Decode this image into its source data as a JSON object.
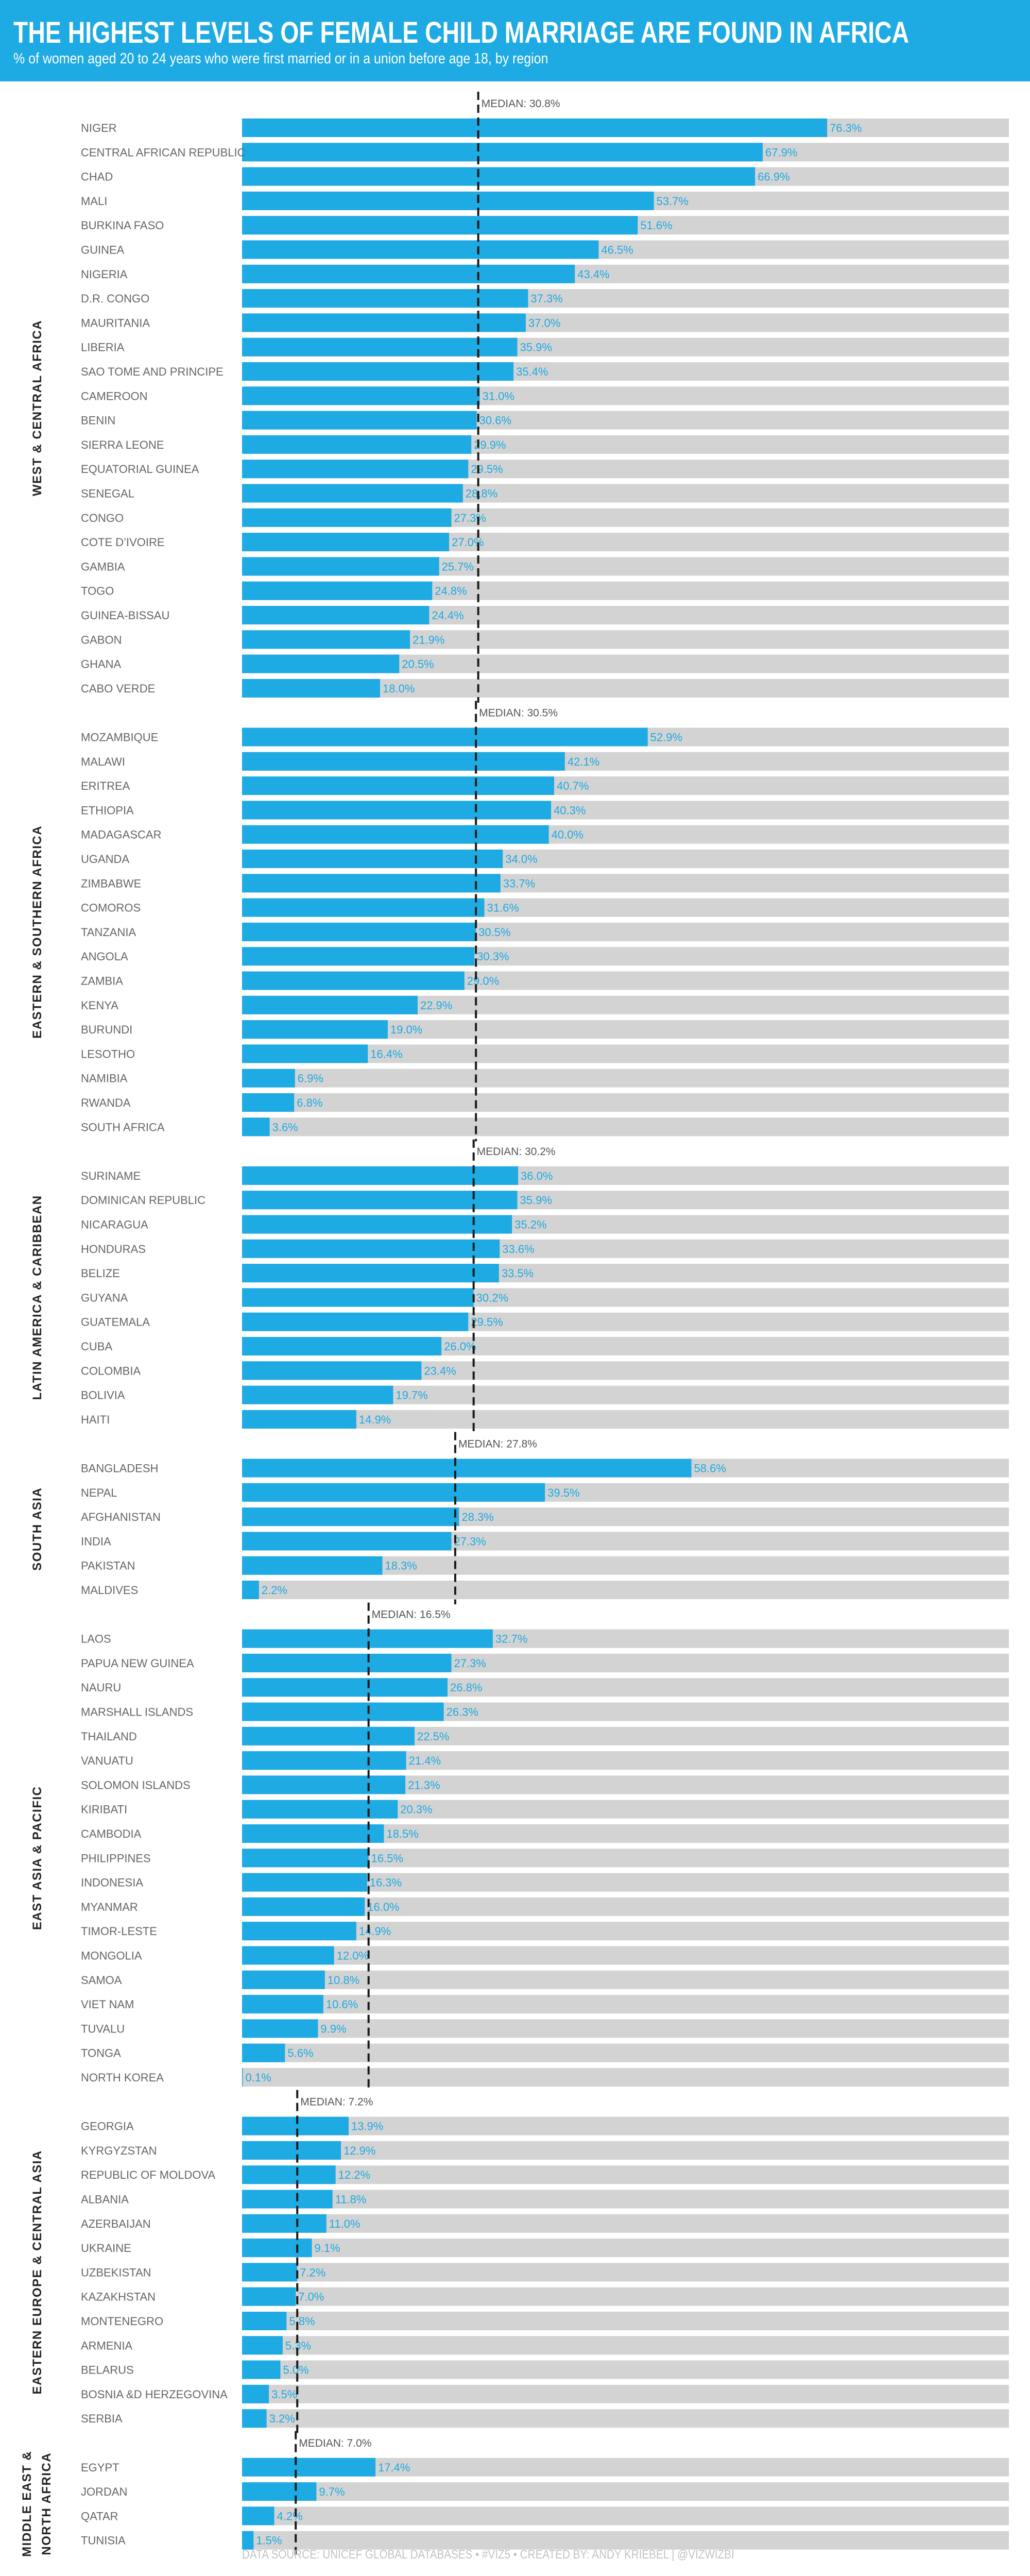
{
  "header": {
    "title": "THE HIGHEST LEVELS OF FEMALE CHILD MARRIAGE ARE FOUND IN AFRICA",
    "subtitle": "% of women aged 20 to 24 years who were first married or in a union before age 18, by region"
  },
  "footer": {
    "text": "DATA SOURCE: UNICEF GLOBAL DATABASES  •  #VIZ5  •  CREATED BY: ANDY KRIEBEL | @VIZWIZBI"
  },
  "colors": {
    "header_bg": "#1eaae2",
    "bar": "#1eaae2",
    "track": "#d3d3d3",
    "value_label": "#1eaae2",
    "country_label": "#666666",
    "region_label": "#222222",
    "median_line": "#1a1a1a",
    "median_label": "#555555"
  },
  "chart_data": {
    "type": "bar",
    "orientation": "horizontal",
    "title": "THE HIGHEST LEVELS OF FEMALE CHILD MARRIAGE ARE FOUND IN AFRICA",
    "subtitle": "% of women aged 20 to 24 years who were first married or in a union before age 18, by region",
    "xlim": [
      0,
      100
    ],
    "unit": "%",
    "median_label_prefix": "MEDIAN: ",
    "groups": [
      {
        "region": "WEST & CENTRAL AFRICA",
        "median": 30.8,
        "categories": [
          "NIGER",
          "CENTRAL AFRICAN REPUBLIC",
          "CHAD",
          "MALI",
          "BURKINA FASO",
          "GUINEA",
          "NIGERIA",
          "D.R. CONGO",
          "MAURITANIA",
          "LIBERIA",
          "SAO TOME AND PRINCIPE",
          "CAMEROON",
          "BENIN",
          "SIERRA LEONE",
          "EQUATORIAL GUINEA",
          "SENEGAL",
          "CONGO",
          "COTE D’IVOIRE",
          "GAMBIA",
          "TOGO",
          "GUINEA-BISSAU",
          "GABON",
          "GHANA",
          "CABO VERDE"
        ],
        "values": [
          76.3,
          67.9,
          66.9,
          53.7,
          51.6,
          46.5,
          43.4,
          37.3,
          37.0,
          35.9,
          35.4,
          31.0,
          30.6,
          29.9,
          29.5,
          28.8,
          27.3,
          27.0,
          25.7,
          24.8,
          24.4,
          21.9,
          20.5,
          18.0
        ]
      },
      {
        "region": "EASTERN & SOUTHERN AFRICA",
        "median": 30.5,
        "categories": [
          "MOZAMBIQUE",
          "MALAWI",
          "ERITREA",
          "ETHIOPIA",
          "MADAGASCAR",
          "UGANDA",
          "ZIMBABWE",
          "COMOROS",
          "TANZANIA",
          "ANGOLA",
          "ZAMBIA",
          "KENYA",
          "BURUNDI",
          "LESOTHO",
          "NAMIBIA",
          "RWANDA",
          "SOUTH AFRICA"
        ],
        "values": [
          52.9,
          42.1,
          40.7,
          40.3,
          40.0,
          34.0,
          33.7,
          31.6,
          30.5,
          30.3,
          29.0,
          22.9,
          19.0,
          16.4,
          6.9,
          6.8,
          3.6
        ]
      },
      {
        "region": "LATIN AMERICA & CARIBBEAN",
        "median": 30.2,
        "categories": [
          "SURINAME",
          "DOMINICAN REPUBLIC",
          "NICARAGUA",
          "HONDURAS",
          "BELIZE",
          "GUYANA",
          "GUATEMALA",
          "CUBA",
          "COLOMBIA",
          "BOLIVIA",
          "HAITI"
        ],
        "values": [
          36.0,
          35.9,
          35.2,
          33.6,
          33.5,
          30.2,
          29.5,
          26.0,
          23.4,
          19.7,
          14.9
        ]
      },
      {
        "region": "SOUTH ASIA",
        "median": 27.8,
        "categories": [
          "BANGLADESH",
          "NEPAL",
          "AFGHANISTAN",
          "INDIA",
          "PAKISTAN",
          "MALDIVES"
        ],
        "values": [
          58.6,
          39.5,
          28.3,
          27.3,
          18.3,
          2.2
        ]
      },
      {
        "region": "EAST ASIA & PACIFIC",
        "median": 16.5,
        "categories": [
          "LAOS",
          "PAPUA NEW GUINEA",
          "NAURU",
          "MARSHALL ISLANDS",
          "THAILAND",
          "VANUATU",
          "SOLOMON ISLANDS",
          "KIRIBATI",
          "CAMBODIA",
          "PHILIPPINES",
          "INDONESIA",
          "MYANMAR",
          "TIMOR-LESTE",
          "MONGOLIA",
          "SAMOA",
          "VIET NAM",
          "TUVALU",
          "TONGA",
          "NORTH KOREA"
        ],
        "values": [
          32.7,
          27.3,
          26.8,
          26.3,
          22.5,
          21.4,
          21.3,
          20.3,
          18.5,
          16.5,
          16.3,
          16.0,
          14.9,
          12.0,
          10.8,
          10.6,
          9.9,
          5.6,
          0.1
        ]
      },
      {
        "region": "EASTERN EUROPE & CENTRAL ASIA",
        "median": 7.2,
        "categories": [
          "GEORGIA",
          "KYRGYZSTAN",
          "REPUBLIC OF MOLDOVA",
          "ALBANIA",
          "AZERBAIJAN",
          "UKRAINE",
          "UZBEKISTAN",
          "KAZAKHSTAN",
          "MONTENEGRO",
          "ARMENIA",
          "BELARUS",
          "BOSNIA &D HERZEGOVINA",
          "SERBIA"
        ],
        "values": [
          13.9,
          12.9,
          12.2,
          11.8,
          11.0,
          9.1,
          7.2,
          7.0,
          5.8,
          5.3,
          5.0,
          3.5,
          3.2
        ]
      },
      {
        "region": "MIDDLE EAST & NORTH AFRICA",
        "region_lines": [
          "MIDDLE EAST &",
          "NORTH AFRICA"
        ],
        "median": 7.0,
        "categories": [
          "EGYPT",
          "JORDAN",
          "QATAR",
          "TUNISIA"
        ],
        "values": [
          17.4,
          9.7,
          4.2,
          1.5
        ]
      }
    ]
  }
}
